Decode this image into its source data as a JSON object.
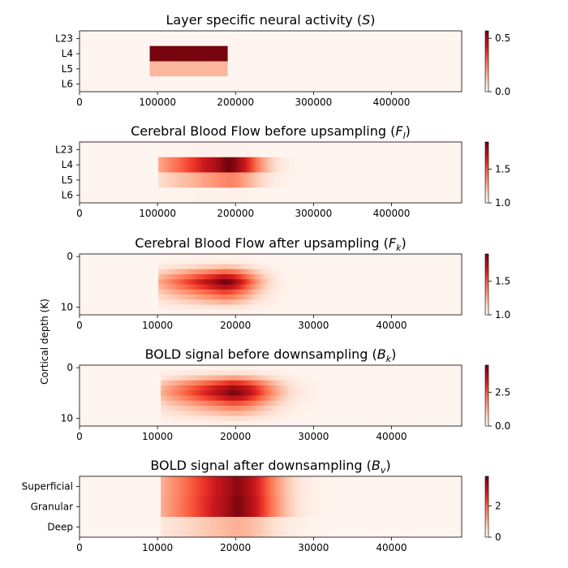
{
  "figure": {
    "ylabel": "Cortical depth (K)"
  },
  "chart_data": [
    {
      "type": "heatmap",
      "title": "Layer specific neural activity (S)",
      "title_main": "Layer specific neural activity (",
      "title_sym": "S",
      "title_sub": "",
      "title_end": ")",
      "xlim": [
        0,
        490000
      ],
      "xticks": [
        0,
        100000,
        200000,
        300000,
        400000
      ],
      "xtick_labels": [
        "0",
        "100000",
        "200000",
        "300000",
        "400000"
      ],
      "rows": [
        "L23",
        "L4",
        "L5",
        "L6"
      ],
      "row_values": [
        0.0,
        0.55,
        0.15,
        0.0
      ],
      "time_profile": {
        "kind": "box",
        "start": 90000,
        "end": 190000
      },
      "colorbar": {
        "range": [
          0.0,
          0.57
        ],
        "ticks": [
          0.0,
          0.5
        ],
        "tick_labels": [
          "0.0",
          "0.5"
        ]
      }
    },
    {
      "type": "heatmap",
      "title": "Cerebral Blood Flow before upsampling (F_l)",
      "title_main": "Cerebral Blood Flow before upsampling (",
      "title_sym": "F",
      "title_sub": "l",
      "title_end": ")",
      "xlim": [
        0,
        490000
      ],
      "xticks": [
        0,
        100000,
        200000,
        300000,
        400000
      ],
      "xtick_labels": [
        "0",
        "100000",
        "200000",
        "300000",
        "400000"
      ],
      "rows": [
        "L23",
        "L4",
        "L5",
        "L6"
      ],
      "baseline": 1.0,
      "row_values": [
        1.02,
        1.88,
        1.38,
        1.02
      ],
      "time_profile": {
        "kind": "smooth",
        "start": 100000,
        "peak": 190000,
        "rise": 45000,
        "decay": 55000
      },
      "colorbar": {
        "range": [
          1.0,
          1.9
        ],
        "ticks": [
          1.0,
          1.5
        ],
        "tick_labels": [
          "1.0",
          "1.5"
        ]
      }
    },
    {
      "type": "heatmap",
      "title": "Cerebral Blood Flow after upsampling (F_k)",
      "title_main": "Cerebral Blood Flow after upsampling (",
      "title_sym": "F",
      "title_sub": "k",
      "title_end": ")",
      "xlim": [
        0,
        49000
      ],
      "xticks": [
        0,
        10000,
        20000,
        30000,
        40000
      ],
      "xtick_labels": [
        "0",
        "10000",
        "20000",
        "30000",
        "40000"
      ],
      "depth_rows": 12,
      "yticks": [
        0,
        10
      ],
      "ytick_labels": [
        "0",
        "10"
      ],
      "baseline": 1.0,
      "depth_values": [
        1.02,
        1.05,
        1.2,
        1.45,
        1.7,
        1.88,
        1.75,
        1.55,
        1.4,
        1.25,
        1.1,
        1.03
      ],
      "time_profile": {
        "kind": "smooth",
        "start": 10000,
        "peak": 18500,
        "rise": 4500,
        "decay": 5500
      },
      "colorbar": {
        "range": [
          1.0,
          1.9
        ],
        "ticks": [
          1.0,
          1.5
        ],
        "tick_labels": [
          "1.0",
          "1.5"
        ]
      }
    },
    {
      "type": "heatmap",
      "title": "BOLD signal before downsampling (B_k)",
      "title_main": "BOLD signal before downsampling (",
      "title_sym": "B",
      "title_sub": "k",
      "title_end": ")",
      "xlim": [
        0,
        49000
      ],
      "xticks": [
        0,
        10000,
        20000,
        30000,
        40000
      ],
      "xtick_labels": [
        "0",
        "10000",
        "20000",
        "30000",
        "40000"
      ],
      "depth_rows": 12,
      "yticks": [
        0,
        10
      ],
      "ytick_labels": [
        "0",
        "10"
      ],
      "baseline": 0.0,
      "depth_values": [
        0.1,
        0.5,
        1.5,
        3.0,
        4.0,
        4.3,
        3.6,
        2.6,
        1.8,
        1.2,
        0.6,
        0.2
      ],
      "time_profile": {
        "kind": "smooth",
        "start": 10500,
        "peak": 19500,
        "rise": 5000,
        "decay": 7000
      },
      "colorbar": {
        "range": [
          0.0,
          4.5
        ],
        "ticks": [
          0.0,
          2.5
        ],
        "tick_labels": [
          "0.0",
          "2.5"
        ]
      }
    },
    {
      "type": "heatmap",
      "title": "BOLD signal after downsampling (B_v)",
      "title_main": "BOLD signal after downsampling (",
      "title_sym": "B",
      "title_sub": "v",
      "title_end": ")",
      "xlim": [
        0,
        49000
      ],
      "xticks": [
        0,
        10000,
        20000,
        30000,
        40000
      ],
      "xtick_labels": [
        "0",
        "10000",
        "20000",
        "30000",
        "40000"
      ],
      "rows": [
        "Superficial",
        "Granular",
        "Deep"
      ],
      "baseline": 0.0,
      "row_values": [
        3.6,
        3.7,
        1.1
      ],
      "time_profile": {
        "kind": "smooth",
        "start": 10500,
        "peak": 20000,
        "rise": 5500,
        "decay": 7000
      },
      "colorbar": {
        "range": [
          0.0,
          3.9
        ],
        "ticks": [
          0,
          2
        ],
        "tick_labels": [
          "0",
          "2"
        ]
      }
    }
  ]
}
